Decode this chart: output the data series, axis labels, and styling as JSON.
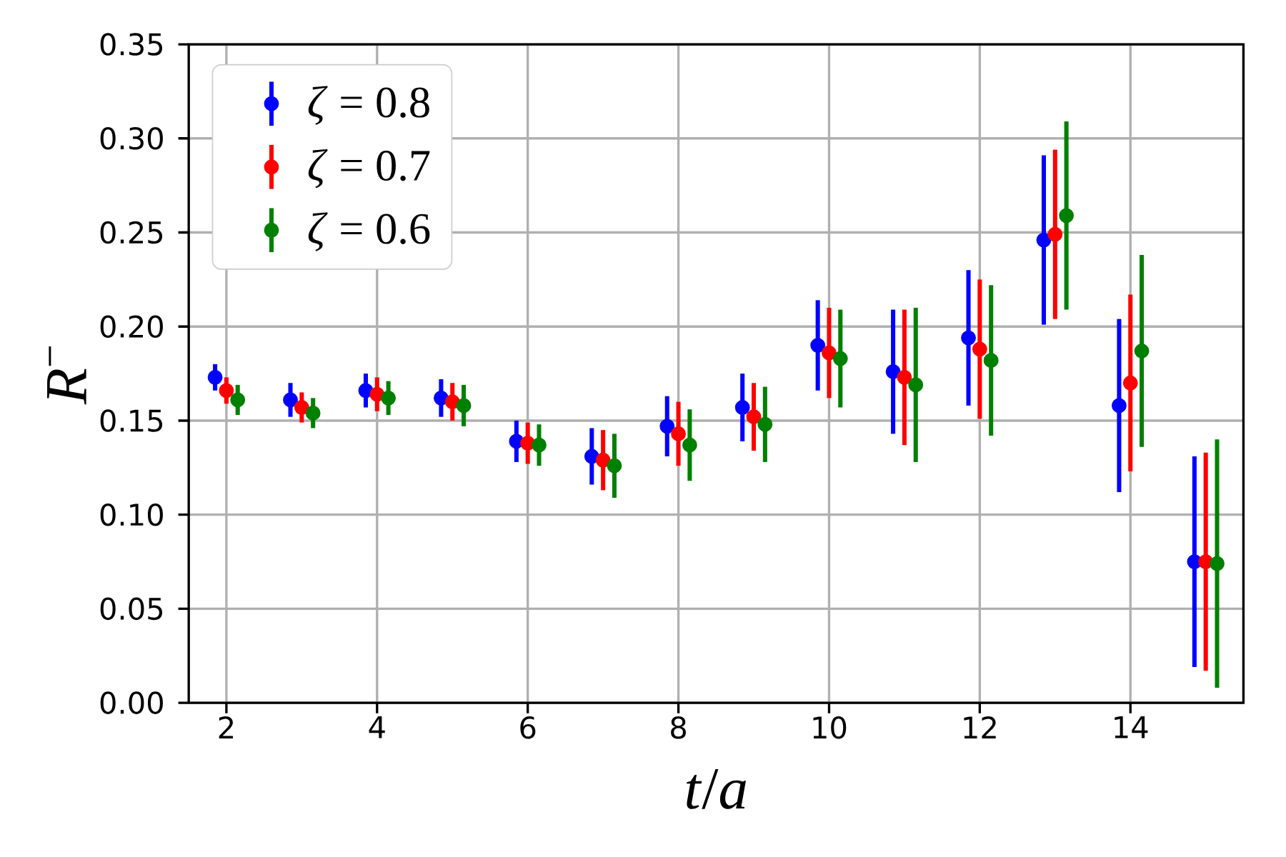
{
  "chart_data": {
    "type": "scatter",
    "xlabel": "*t*/*a*",
    "ylabel": "*R*$^{−}$",
    "xlim": [
      1.5,
      15.5
    ],
    "ylim": [
      0,
      0.35
    ],
    "xticks": [
      2,
      4,
      6,
      8,
      10,
      12,
      14
    ],
    "yticks": [
      {
        "value": 0,
        "label": "0.00"
      },
      0.05,
      {
        "value": 0.1,
        "label": "0.10"
      },
      0.15,
      {
        "value": 0.2,
        "label": "0.20"
      },
      0.25,
      {
        "value": 0.3,
        "label": "0.30"
      },
      0.35
    ],
    "grid": true,
    "legend": "top left",
    "marker": "circle",
    "series": [
      {
        "name": "*ζ* = 0.8",
        "color": "#0000ff",
        "x": [
          1.85,
          2.85,
          3.85,
          4.85,
          5.85,
          6.85,
          7.85,
          8.85,
          9.85,
          10.85,
          11.85,
          12.85,
          13.85,
          14.85
        ],
        "values": [
          0.173,
          0.161,
          0.166,
          0.162,
          0.139,
          0.131,
          0.147,
          0.157,
          0.19,
          0.176,
          0.194,
          0.246,
          0.158,
          0.075
        ],
        "errors": [
          0.007,
          0.009,
          0.009,
          0.01,
          0.011,
          0.015,
          0.016,
          0.018,
          0.024,
          0.033,
          0.036,
          0.045,
          0.046,
          0.056
        ]
      },
      {
        "name": "*ζ* = 0.7",
        "color": "#ff0000",
        "x": [
          2,
          3,
          4,
          5,
          6,
          7,
          8,
          9,
          10,
          11,
          12,
          13,
          14,
          15
        ],
        "values": [
          0.166,
          0.157,
          0.164,
          0.16,
          0.138,
          0.129,
          0.143,
          0.152,
          0.186,
          0.173,
          0.188,
          0.249,
          0.17,
          0.075
        ],
        "errors": [
          0.007,
          0.008,
          0.009,
          0.01,
          0.011,
          0.016,
          0.017,
          0.018,
          0.024,
          0.036,
          0.037,
          0.045,
          0.047,
          0.058
        ]
      },
      {
        "name": "*ζ* = 0.6",
        "color": "#008000",
        "x": [
          2.15,
          3.15,
          4.15,
          5.15,
          6.15,
          7.15,
          8.15,
          9.15,
          10.15,
          11.15,
          12.15,
          13.15,
          14.15,
          15.15
        ],
        "values": [
          0.161,
          0.154,
          0.162,
          0.158,
          0.137,
          0.126,
          0.137,
          0.148,
          0.183,
          0.169,
          0.182,
          0.259,
          0.187,
          0.074
        ],
        "errors": [
          0.008,
          0.008,
          0.009,
          0.011,
          0.011,
          0.017,
          0.019,
          0.02,
          0.026,
          0.041,
          0.04,
          0.05,
          0.051,
          0.066
        ]
      }
    ]
  }
}
